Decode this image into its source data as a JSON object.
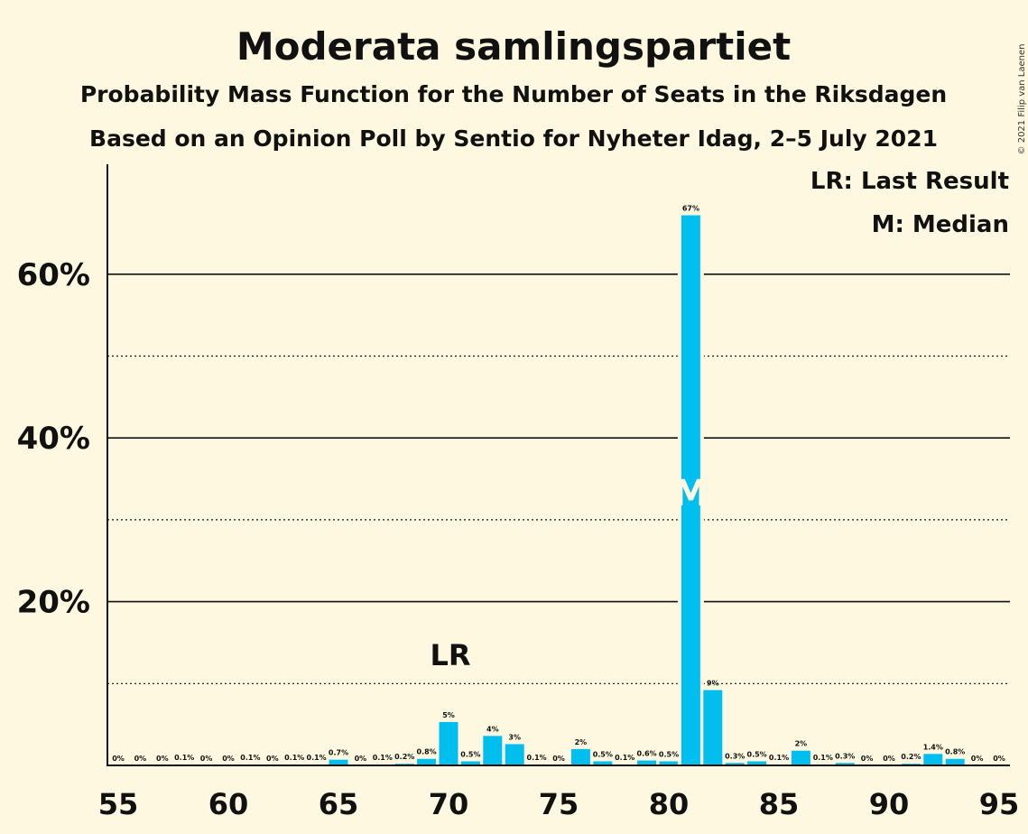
{
  "title": "Moderata samlingspartiet",
  "subtitle1": "Probability Mass Function for the Number of Seats in the Riksdagen",
  "subtitle2": "Based on an Opinion Poll by Sentio for Nyheter Idag, 2–5 July 2021",
  "copyright": "© 2021 Filip van Laenen",
  "legend": {
    "lr": "LR: Last Result",
    "m": "M: Median"
  },
  "markers": {
    "lr_label": "LR",
    "lr_seat": 70,
    "median_label": "M",
    "median_seat": 81
  },
  "colors": {
    "bar": "#00bfef",
    "background": "#fff8e1"
  },
  "chart_data": {
    "type": "bar",
    "x": [
      55,
      56,
      57,
      58,
      59,
      60,
      61,
      62,
      63,
      64,
      65,
      66,
      67,
      68,
      69,
      70,
      71,
      72,
      73,
      74,
      75,
      76,
      77,
      78,
      79,
      80,
      81,
      82,
      83,
      84,
      85,
      86,
      87,
      88,
      89,
      90,
      91,
      92,
      93,
      94,
      95
    ],
    "values": [
      0,
      0,
      0,
      0.1,
      0,
      0,
      0.1,
      0,
      0.1,
      0.1,
      0.7,
      0,
      0.1,
      0.2,
      0.8,
      5.3,
      0.5,
      3.6,
      2.6,
      0.1,
      0,
      2.0,
      0.5,
      0.1,
      0.6,
      0.5,
      67.2,
      9.2,
      0.3,
      0.5,
      0.1,
      1.8,
      0.1,
      0.3,
      0,
      0,
      0.2,
      1.4,
      0.8,
      0,
      0
    ],
    "data_labels": [
      "0%",
      "0%",
      "0%",
      "0.1%",
      "0%",
      "0%",
      "0.1%",
      "0%",
      "0.1%",
      "0.1%",
      "0.7%",
      "0%",
      "0.1%",
      "0.2%",
      "0.8%",
      "5%",
      "0.5%",
      "4%",
      "3%",
      "0.1%",
      "0%",
      "2%",
      "0.5%",
      "0.1%",
      "0.6%",
      "0.5%",
      "67%",
      "9%",
      "0.3%",
      "0.5%",
      "0.1%",
      "2%",
      "0.1%",
      "0.3%",
      "0%",
      "0%",
      "0.2%",
      "1.4%",
      "0.8%",
      "0%",
      "0%"
    ],
    "x_ticks": [
      55,
      60,
      65,
      70,
      75,
      80,
      85,
      90,
      95
    ],
    "x_tick_labels": [
      "55",
      "60",
      "65",
      "70",
      "75",
      "80",
      "85",
      "90",
      "95"
    ],
    "y_ticks_major": [
      20,
      40,
      60
    ],
    "y_tick_labels": [
      "20%",
      "40%",
      "60%"
    ],
    "y_gridlines_minor": [
      10,
      30,
      50
    ],
    "ylim": [
      0,
      72
    ],
    "xlim": [
      55,
      95
    ],
    "grid": true,
    "legend_position": "top-right"
  }
}
